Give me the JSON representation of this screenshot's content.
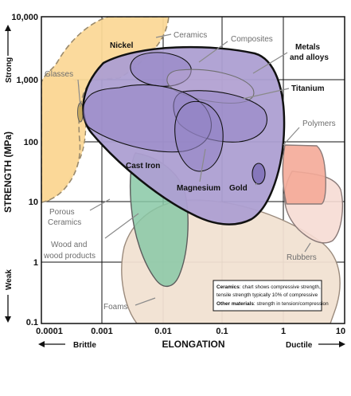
{
  "chart_data": {
    "type": "region",
    "x_scale": "log",
    "y_scale": "log",
    "xlim": [
      0.0001,
      10
    ],
    "ylim": [
      0.1,
      10000
    ],
    "grid": true,
    "xlabel": "ELONGATION",
    "ylabel": "STRENGTH (MPa)",
    "x_ticks": [
      "0.0001",
      "0.001",
      "0.01",
      "0.1",
      "1",
      "10"
    ],
    "y_ticks": [
      "10,000",
      "1,000",
      "100",
      "10",
      "1",
      "0.1"
    ],
    "x_end_labels": {
      "left": "Brittle",
      "right": "Ductile"
    },
    "y_end_labels": {
      "top": "Strong",
      "bottom": "Weak"
    },
    "regions": [
      {
        "name": "Ceramics",
        "x_range": [
          0.0003,
          0.005
        ],
        "y_range": [
          10,
          10000
        ]
      },
      {
        "name": "Glasses",
        "x_range": [
          0.0004,
          0.0005
        ],
        "y_range": [
          150,
          400
        ]
      },
      {
        "name": "Porous Ceramics",
        "x_range": [
          0.0001,
          0.001
        ],
        "y_range": [
          10,
          800
        ]
      },
      {
        "name": "Metals and alloys",
        "x_range": [
          0.001,
          2
        ],
        "y_range": [
          7,
          6000
        ]
      },
      {
        "name": "Nickel",
        "x_range": [
          0.005,
          0.05
        ],
        "y_range": [
          800,
          3000
        ]
      },
      {
        "name": "Composites",
        "x_range": [
          0.02,
          0.5
        ],
        "y_range": [
          300,
          1500
        ]
      },
      {
        "name": "Titanium",
        "x_range": [
          0.05,
          0.8
        ],
        "y_range": [
          150,
          1000
        ]
      },
      {
        "name": "Cast Iron",
        "x_range": [
          0.001,
          0.1
        ],
        "y_range": [
          60,
          700
        ]
      },
      {
        "name": "Magnesium",
        "x_range": [
          0.01,
          0.1
        ],
        "y_range": [
          80,
          400
        ]
      },
      {
        "name": "Gold",
        "x_range": [
          0.3,
          0.5
        ],
        "y_range": [
          25,
          60
        ]
      },
      {
        "name": "Polymers",
        "x_range": [
          1,
          5
        ],
        "y_range": [
          15,
          120
        ]
      },
      {
        "name": "Rubbers",
        "x_range": [
          1,
          8
        ],
        "y_range": [
          1,
          30
        ]
      },
      {
        "name": "Wood and wood products",
        "x_range": [
          0.003,
          0.03
        ],
        "y_range": [
          0.4,
          60
        ]
      },
      {
        "name": "Foams",
        "x_range": [
          0.003,
          8
        ],
        "y_range": [
          0.1,
          15
        ]
      }
    ],
    "note": {
      "line1_bold": "Ceramics",
      "line1_rest": ": chart shows compressive strength,",
      "line2": "tensile strength typically 10% of compressive",
      "line3_bold": "Other materials",
      "line3_rest": ": strength in tension/compression"
    },
    "colors": {
      "ceramics": "#fbd898",
      "metals": "#ad9fd2",
      "metal_sub": "#9383c4",
      "polymers": "#f4aa98",
      "rubbers": "#f6dcd4",
      "wood": "#88c8a6",
      "foams": "#f1e1d2",
      "outline": "#111111"
    }
  }
}
